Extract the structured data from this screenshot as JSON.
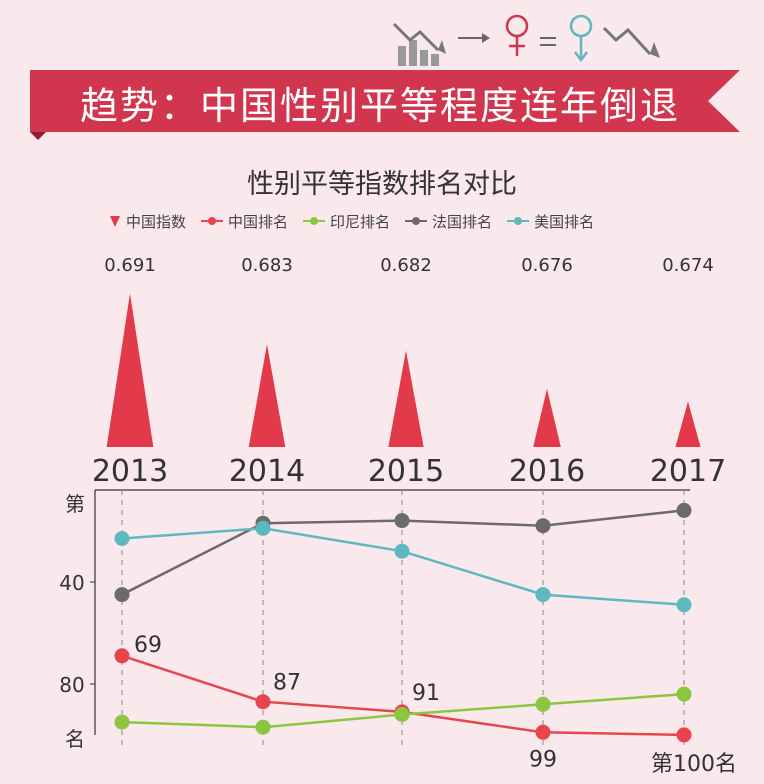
{
  "header": {
    "title": "趋势：中国性别平等程度连年倒退"
  },
  "colors": {
    "background": "#f9e8ec",
    "banner": "#d2364f",
    "china_index": "#e23a4b",
    "china_rank": "#e8444e",
    "indonesia_rank": "#8cc63f",
    "france_rank": "#6b6b6b",
    "usa_rank": "#5db9bf"
  },
  "chart_data": {
    "type": "line",
    "title": "性别平等指数排名对比",
    "categories": [
      "2013",
      "2014",
      "2015",
      "2016",
      "2017"
    ],
    "index_series": {
      "name": "中国指数",
      "values": [
        0.691,
        0.683,
        0.682,
        0.676,
        0.674
      ]
    },
    "series": [
      {
        "name": "中国排名",
        "values": [
          69,
          87,
          91,
          99,
          100
        ]
      },
      {
        "name": "印尼排名",
        "values": [
          95,
          97,
          92,
          88,
          84
        ]
      },
      {
        "name": "法国排名",
        "values": [
          45,
          17,
          16,
          18,
          12
        ]
      },
      {
        "name": "美国排名",
        "values": [
          23,
          19,
          28,
          45,
          49
        ]
      }
    ],
    "point_labels": {
      "china": [
        "69",
        "87",
        "91",
        "99",
        "第100名"
      ]
    },
    "y_axis": {
      "top_label": "第",
      "bottom_label": "名",
      "ticks": [
        "40",
        "80"
      ],
      "inverted": true,
      "ylim": [
        4,
        102
      ]
    },
    "legend_position": "top"
  }
}
